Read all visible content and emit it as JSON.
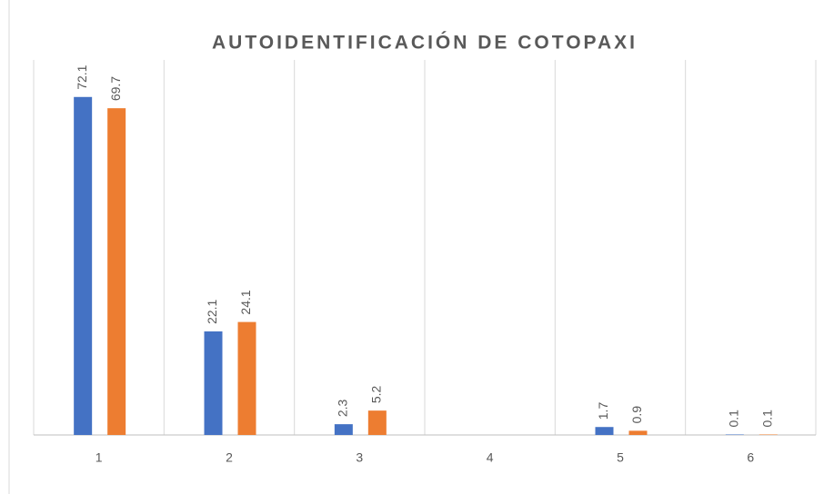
{
  "chart_data": {
    "type": "bar",
    "title": "AUTOIDENTIFICACIÓN DE COTOPAXI",
    "categories": [
      "1",
      "2",
      "3",
      "4",
      "5",
      "6"
    ],
    "series": [
      {
        "color": "#4472c4",
        "values": [
          72.1,
          22.1,
          2.3,
          null,
          1.7,
          0.1
        ]
      },
      {
        "color": "#ed7d31",
        "values": [
          69.7,
          24.1,
          5.2,
          null,
          0.9,
          0.1
        ]
      }
    ],
    "ylim": [
      0,
      80
    ],
    "grid": true
  }
}
